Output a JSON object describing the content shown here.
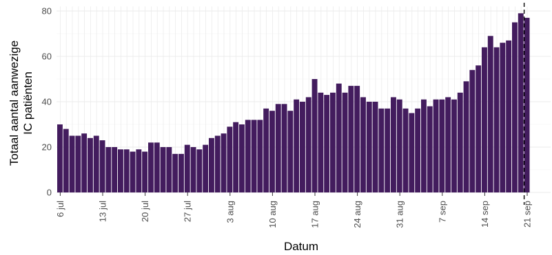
{
  "chart_data": {
    "type": "bar",
    "xlabel": "Datum",
    "ylabel": [
      "Totaal aantal aanwezige",
      "IC patiënten"
    ],
    "ylim": [
      0,
      82
    ],
    "yticks": [
      0,
      20,
      40,
      60,
      80
    ],
    "x_tick_labels": [
      {
        "label": "6 jul",
        "day_index": 0
      },
      {
        "label": "13 jul",
        "day_index": 7
      },
      {
        "label": "20 jul",
        "day_index": 14
      },
      {
        "label": "27 jul",
        "day_index": 21
      },
      {
        "label": "3 aug",
        "day_index": 28
      },
      {
        "label": "10 aug",
        "day_index": 35
      },
      {
        "label": "17 aug",
        "day_index": 42
      },
      {
        "label": "24 aug",
        "day_index": 49
      },
      {
        "label": "31 aug",
        "day_index": 56
      },
      {
        "label": "7 sep",
        "day_index": 63
      },
      {
        "label": "14 sep",
        "day_index": 70
      },
      {
        "label": "21 sep",
        "day_index": 77
      }
    ],
    "reference_line_day_index": 76.5,
    "grid": true,
    "bar_color": "#431c5e",
    "values": [
      30,
      28,
      25,
      25,
      26,
      24,
      25,
      23,
      20,
      20,
      19,
      19,
      18,
      19,
      18,
      22,
      22,
      20,
      20,
      17,
      17,
      21,
      20,
      19,
      21,
      24,
      25,
      26,
      29,
      31,
      30,
      32,
      32,
      32,
      37,
      36,
      39,
      39,
      36,
      41,
      40,
      42,
      50,
      44,
      43,
      44,
      48,
      44,
      47,
      47,
      42,
      40,
      40,
      37,
      37,
      42,
      41,
      37,
      35,
      37,
      41,
      38,
      41,
      41,
      42,
      41,
      44,
      49,
      54,
      56,
      64,
      69,
      64,
      66,
      67,
      75,
      79,
      77
    ]
  }
}
